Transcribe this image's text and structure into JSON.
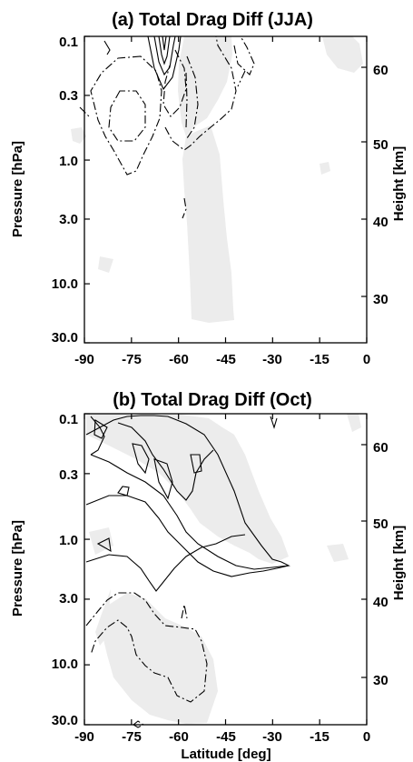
{
  "chart_data": [
    {
      "type": "contour",
      "title": "(a)  Total Drag Diff (JJA)",
      "xlabel": "",
      "ylabel": "Pressure [hPa]",
      "y2label": "Height [km]",
      "x_ticks": [
        "-90",
        "-75",
        "-60",
        "-45",
        "-30",
        "-15",
        "0"
      ],
      "y_ticks": [
        "0.1",
        "0.3",
        "1.0",
        "3.0",
        "10.0",
        "30.0"
      ],
      "y2_ticks": [
        "60",
        "50",
        "40",
        "30"
      ],
      "xlim": [
        -90,
        0
      ],
      "ylim_pressure": [
        30.0,
        0.1
      ],
      "pressure_log_scale": true,
      "shading": "light grey = positive / significant region",
      "contour_styles": {
        "solid": "positive",
        "dash_dot": "negative"
      }
    },
    {
      "type": "contour",
      "title": "(b)  Total Drag Diff (Oct)",
      "xlabel": "Latitude [deg]",
      "ylabel": "Pressure [hPa]",
      "y2label": "Height [km]",
      "x_ticks": [
        "-90",
        "-75",
        "-60",
        "-45",
        "-30",
        "-15",
        "0"
      ],
      "y_ticks": [
        "0.1",
        "0.3",
        "1.0",
        "3.0",
        "10.0",
        "30.0"
      ],
      "y2_ticks": [
        "60",
        "50",
        "40",
        "30"
      ],
      "xlim": [
        -90,
        0
      ],
      "ylim_pressure": [
        30.0,
        0.1
      ],
      "pressure_log_scale": true,
      "shading": "light grey = positive / significant region",
      "contour_styles": {
        "solid": "positive",
        "dash_dot": "negative"
      }
    }
  ],
  "colors": {
    "frame": "#000000",
    "shading": "#ececec",
    "background": "#ffffff"
  }
}
